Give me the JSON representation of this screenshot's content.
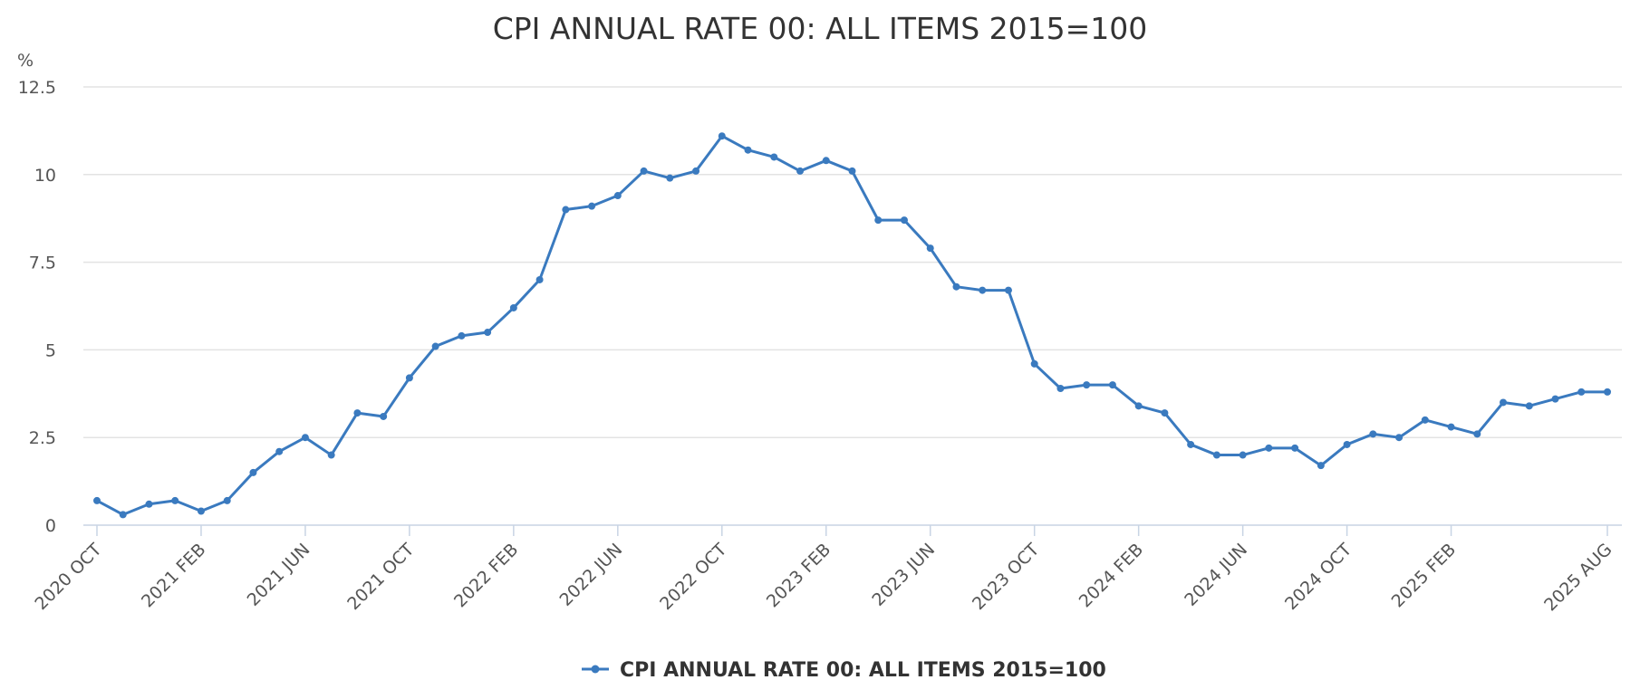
{
  "chart_data": {
    "type": "line",
    "title": "CPI ANNUAL RATE 00: ALL ITEMS 2015=100",
    "ylabel": "%",
    "ylim": [
      0,
      12.5
    ],
    "yticks": [
      "0",
      "2.5",
      "5",
      "7.5",
      "10",
      "12.5"
    ],
    "xticks": [
      "2020 OCT",
      "2021 FEB",
      "2021 JUN",
      "2021 OCT",
      "2022 FEB",
      "2022 JUN",
      "2022 OCT",
      "2023 FEB",
      "2023 JUN",
      "2023 OCT",
      "2024 FEB",
      "2024 JUN",
      "2024 OCT",
      "2025 FEB",
      "2025 AUG"
    ],
    "grid": true,
    "legend_position": "bottom-center",
    "color": "#3a7abf",
    "series": [
      {
        "name": "CPI ANNUAL RATE 00: ALL ITEMS 2015=100",
        "x": [
          "2020-10",
          "2020-11",
          "2020-12",
          "2021-01",
          "2021-02",
          "2021-03",
          "2021-04",
          "2021-05",
          "2021-06",
          "2021-07",
          "2021-08",
          "2021-09",
          "2021-10",
          "2021-11",
          "2021-12",
          "2022-01",
          "2022-02",
          "2022-03",
          "2022-04",
          "2022-05",
          "2022-06",
          "2022-07",
          "2022-08",
          "2022-09",
          "2022-10",
          "2022-11",
          "2022-12",
          "2023-01",
          "2023-02",
          "2023-03",
          "2023-04",
          "2023-05",
          "2023-06",
          "2023-07",
          "2023-08",
          "2023-09",
          "2023-10",
          "2023-11",
          "2023-12",
          "2024-01",
          "2024-02",
          "2024-03",
          "2024-04",
          "2024-05",
          "2024-06",
          "2024-07",
          "2024-08",
          "2024-09",
          "2024-10",
          "2024-11",
          "2024-12",
          "2025-01",
          "2025-02",
          "2025-03",
          "2025-04",
          "2025-05",
          "2025-06",
          "2025-07",
          "2025-08"
        ],
        "values": [
          0.7,
          0.3,
          0.6,
          0.7,
          0.4,
          0.7,
          1.5,
          2.1,
          2.5,
          2.0,
          3.2,
          3.1,
          4.2,
          5.1,
          5.4,
          5.5,
          6.2,
          7.0,
          9.0,
          9.1,
          9.4,
          10.1,
          9.9,
          10.1,
          11.1,
          10.7,
          10.5,
          10.1,
          10.4,
          10.1,
          8.7,
          8.7,
          7.9,
          6.8,
          6.7,
          6.7,
          4.6,
          3.9,
          4.0,
          4.0,
          3.4,
          3.2,
          2.3,
          2.0,
          2.0,
          2.2,
          2.2,
          1.7,
          2.3,
          2.6,
          2.5,
          3.0,
          2.8,
          2.6,
          3.5,
          3.4,
          3.6,
          3.8,
          3.8
        ]
      }
    ]
  }
}
